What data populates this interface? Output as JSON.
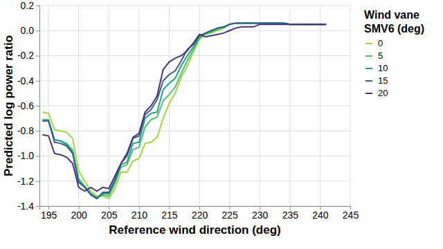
{
  "chart_data": {
    "type": "line",
    "x_label": "Reference wind direction (deg)",
    "y_label": "Predicted log power ratio",
    "legend_title": [
      "Wind vane",
      "SMV6 (deg)"
    ],
    "legend": "right",
    "grid": true,
    "xlim": [
      193.5,
      245
    ],
    "xticks": [
      195,
      200,
      205,
      210,
      215,
      220,
      225,
      230,
      235,
      240,
      245
    ],
    "ylim": [
      -1.4,
      0.2
    ],
    "yticks": [
      0.2,
      {
        "value": 0,
        "label": "0.0"
      },
      -0.2,
      -0.4,
      -0.6,
      -0.8,
      {
        "value": -1,
        "label": "-1.0"
      },
      -1.2,
      -1.4
    ],
    "x": [
      194,
      195,
      196,
      197,
      198,
      199,
      200,
      201,
      202,
      203,
      204,
      205,
      206,
      207,
      208,
      209,
      210,
      211,
      212,
      213,
      214,
      215,
      216,
      217,
      218,
      219,
      220,
      221,
      222,
      223,
      224,
      225,
      226,
      227,
      228,
      229,
      230,
      231,
      232,
      233,
      234,
      235,
      236,
      237,
      238,
      239,
      240,
      241
    ],
    "series": [
      {
        "name": "0",
        "color": "#a0da39",
        "values": [
          -0.65,
          -0.66,
          -0.79,
          -0.8,
          -0.81,
          -0.86,
          -1.12,
          -1.2,
          -1.28,
          -1.32,
          -1.32,
          -1.34,
          -1.26,
          -1.13,
          -1.13,
          -1.04,
          -1.02,
          -0.9,
          -0.89,
          -0.85,
          -0.7,
          -0.58,
          -0.5,
          -0.37,
          -0.28,
          -0.17,
          -0.07,
          -0.03,
          -0.02,
          0.0,
          0.02,
          0.05,
          0.06,
          0.06,
          0.06,
          0.06,
          0.06,
          0.06,
          0.06,
          0.06,
          0.06,
          0.05,
          0.05,
          0.05,
          0.05,
          0.05,
          0.05,
          0.05
        ]
      },
      {
        "name": "5",
        "color": "#4ac16d",
        "values": [
          -0.71,
          -0.71,
          -0.87,
          -0.88,
          -0.9,
          -0.95,
          -1.18,
          -1.24,
          -1.3,
          -1.33,
          -1.31,
          -1.32,
          -1.22,
          -1.09,
          -1.07,
          -0.95,
          -0.93,
          -0.77,
          -0.71,
          -0.69,
          -0.56,
          -0.51,
          -0.45,
          -0.34,
          -0.24,
          -0.15,
          -0.06,
          -0.03,
          -0.01,
          0.01,
          0.02,
          0.05,
          0.06,
          0.06,
          0.06,
          0.06,
          0.06,
          0.06,
          0.06,
          0.06,
          0.06,
          0.05,
          0.05,
          0.05,
          0.05,
          0.05,
          0.05,
          0.05
        ]
      },
      {
        "name": "10",
        "color": "#1fa187",
        "values": [
          -0.72,
          -0.72,
          -0.87,
          -0.88,
          -0.91,
          -0.97,
          -1.2,
          -1.25,
          -1.3,
          -1.34,
          -1.3,
          -1.3,
          -1.2,
          -1.07,
          -1.05,
          -0.9,
          -0.89,
          -0.7,
          -0.66,
          -0.65,
          -0.47,
          -0.42,
          -0.38,
          -0.28,
          -0.2,
          -0.13,
          -0.05,
          -0.02,
          0.0,
          0.02,
          0.03,
          0.05,
          0.06,
          0.06,
          0.06,
          0.06,
          0.06,
          0.06,
          0.06,
          0.06,
          0.06,
          0.05,
          0.05,
          0.05,
          0.05,
          0.05,
          0.05,
          0.05
        ]
      },
      {
        "name": "15",
        "color": "#365c8d",
        "values": [
          -0.72,
          -0.72,
          -0.89,
          -0.9,
          -0.92,
          -0.98,
          -1.21,
          -1.25,
          -1.31,
          -1.34,
          -1.29,
          -1.29,
          -1.19,
          -1.06,
          -1.0,
          -0.86,
          -0.84,
          -0.67,
          -0.63,
          -0.55,
          -0.4,
          -0.35,
          -0.32,
          -0.24,
          -0.15,
          -0.11,
          -0.04,
          -0.02,
          0.0,
          0.02,
          0.03,
          0.05,
          0.06,
          0.06,
          0.06,
          0.06,
          0.06,
          0.06,
          0.06,
          0.06,
          0.06,
          0.05,
          0.05,
          0.05,
          0.05,
          0.05,
          0.05,
          0.05
        ]
      },
      {
        "name": "20",
        "color": "#46327e",
        "values": [
          -0.83,
          -0.84,
          -0.98,
          -0.99,
          -1.01,
          -1.06,
          -1.25,
          -1.28,
          -1.25,
          -1.28,
          -1.25,
          -1.26,
          -1.16,
          -1.06,
          -0.98,
          -0.85,
          -0.82,
          -0.65,
          -0.6,
          -0.52,
          -0.31,
          -0.25,
          -0.22,
          -0.2,
          -0.16,
          -0.1,
          -0.03,
          -0.05,
          -0.04,
          -0.03,
          -0.02,
          0.0,
          0.02,
          0.03,
          0.03,
          0.03,
          0.05,
          0.05,
          0.05,
          0.05,
          0.05,
          0.05,
          0.05,
          0.05,
          0.05,
          0.05,
          0.05,
          0.05
        ]
      }
    ]
  }
}
